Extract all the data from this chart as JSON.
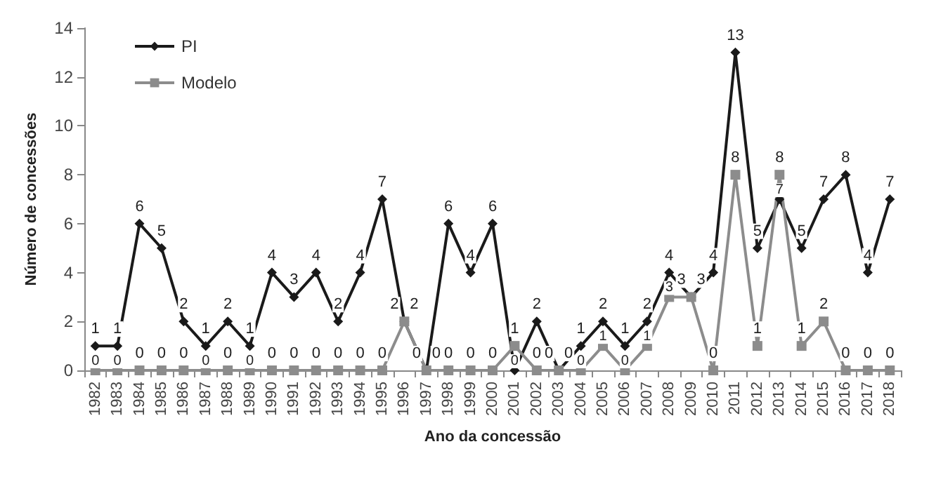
{
  "chart_data": {
    "type": "line",
    "xlabel": "Ano da concessão",
    "ylabel": "Número de concessões",
    "categories": [
      "1982",
      "1983",
      "1984",
      "1985",
      "1986",
      "1987",
      "1988",
      "1989",
      "1990",
      "1991",
      "1992",
      "1993",
      "1994",
      "1995",
      "1996",
      "1997",
      "1998",
      "1999",
      "2000",
      "2001",
      "2002",
      "2003",
      "2004",
      "2005",
      "2006",
      "2007",
      "2008",
      "2009",
      "2010",
      "2011",
      "2012",
      "2013",
      "2014",
      "2015",
      "2016",
      "2017",
      "2018"
    ],
    "series": [
      {
        "name": "PI",
        "color": "#1a1a1a",
        "marker": "diamond",
        "values": [
          1,
          1,
          6,
          5,
          2,
          1,
          2,
          1,
          4,
          3,
          4,
          2,
          4,
          7,
          2,
          0,
          6,
          4,
          6,
          0,
          2,
          0,
          1,
          2,
          1,
          2,
          4,
          3,
          4,
          13,
          5,
          7,
          5,
          7,
          8,
          4,
          7
        ]
      },
      {
        "name": "Modelo",
        "color": "#8c8c8c",
        "marker": "square",
        "values": [
          0,
          0,
          0,
          0,
          0,
          0,
          0,
          0,
          0,
          0,
          0,
          0,
          0,
          0,
          2,
          0,
          0,
          0,
          0,
          1,
          0,
          0,
          0,
          1,
          0,
          1,
          3,
          3,
          0,
          8,
          1,
          8,
          1,
          2,
          0,
          0,
          0
        ]
      }
    ],
    "ylim": [
      0,
      14
    ],
    "yticks": [
      0,
      2,
      4,
      6,
      8,
      10,
      12,
      14
    ],
    "grid": false,
    "legend": "top left",
    "data_labels": true,
    "line_style": "solid"
  }
}
